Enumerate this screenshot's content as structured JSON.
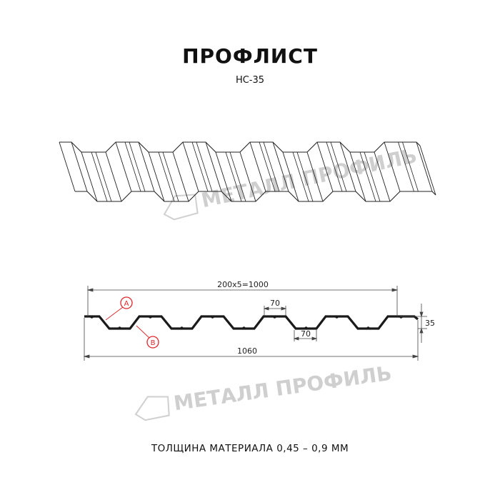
{
  "title": "ПРОФЛИСТ",
  "subtitle": "НС-35",
  "footer": "ТОЛЩИНА МАТЕРИАЛА 0,45 – 0,9 ММ",
  "watermark": "МЕТАЛЛ ПРОФИЛЬ",
  "dimensions": {
    "pitch_total": "200x5=1000",
    "top_flat": "70",
    "bottom_flat": "70",
    "height": "35",
    "total_width": "1060"
  },
  "markers": {
    "a": "A",
    "b": "B"
  },
  "colors": {
    "line": "#1a1a1a",
    "marker": "#e0262b",
    "watermark": "#c8c8c8",
    "dim": "#333333"
  }
}
